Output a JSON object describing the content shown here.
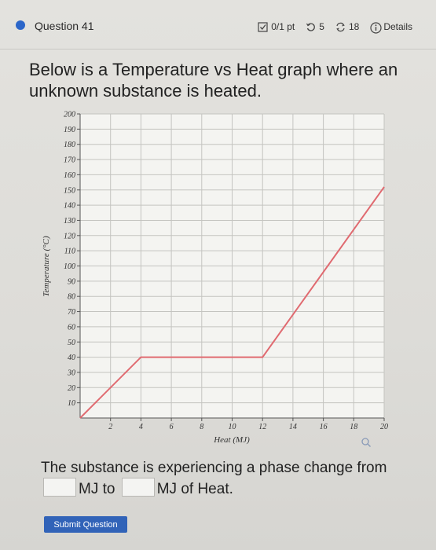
{
  "header": {
    "question_label": "Question 41",
    "score": "0/1 pt",
    "attempts": "5",
    "submissions": "18",
    "details_label": "Details"
  },
  "question": {
    "text": "Below is a Temperature vs Heat graph where an unknown substance is heated."
  },
  "chart_data": {
    "type": "line",
    "xlabel": "Heat (MJ)",
    "ylabel": "Temperature (°C)",
    "xlim": [
      0,
      20
    ],
    "ylim": [
      0,
      200
    ],
    "x_ticks": [
      "2",
      "4",
      "6",
      "8",
      "10",
      "12",
      "14",
      "16",
      "18",
      "20"
    ],
    "y_ticks": [
      "10",
      "20",
      "30",
      "40",
      "50",
      "60",
      "70",
      "80",
      "90",
      "100",
      "110",
      "120",
      "130",
      "140",
      "150",
      "160",
      "170",
      "180",
      "190",
      "200"
    ],
    "grid": true,
    "series": [
      {
        "x": [
          0,
          4,
          12,
          20
        ],
        "y": [
          0,
          40,
          40,
          152
        ]
      }
    ],
    "line_color": "#e06a70"
  },
  "answer": {
    "text_before": "The substance is experiencing a phase change from",
    "text_mid": "MJ to",
    "text_after": "MJ of Heat.",
    "input1_value": "",
    "input2_value": ""
  },
  "submit_label": "Submit Question"
}
